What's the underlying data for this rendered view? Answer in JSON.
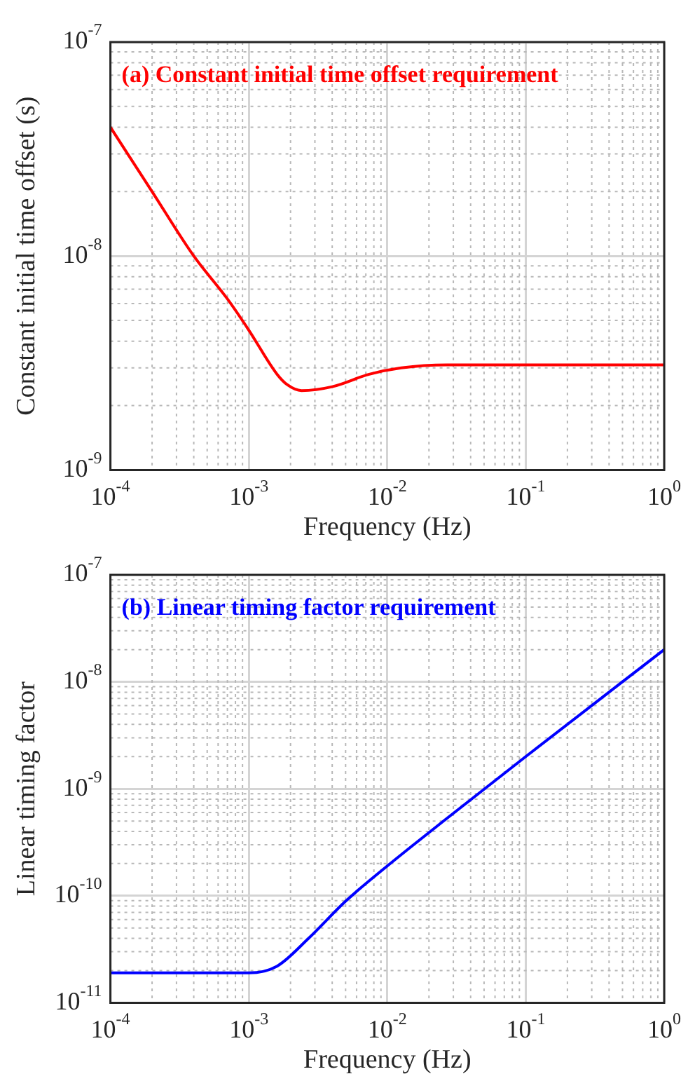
{
  "chart_data": [
    {
      "type": "line",
      "title": "(a) Constant initial time offset requirement",
      "xlabel": "Frequency (Hz)",
      "ylabel": "Constant initial time offset (s)",
      "series": [
        {
          "color": "#ff0000",
          "x": [
            0.0001,
            0.0002,
            0.0004,
            0.0007,
            0.001,
            0.0016,
            0.0019,
            0.0024,
            0.004,
            0.0074,
            0.0126,
            0.027,
            0.1,
            1
          ],
          "values": [
            4e-08,
            2e-08,
            1e-08,
            6.3e-09,
            4.5e-09,
            2.8e-09,
            2.5e-09,
            2.35e-09,
            2.45e-09,
            2.8e-09,
            3e-09,
            3.1e-09,
            3.1e-09,
            3.1e-09
          ]
        }
      ],
      "log": "xy",
      "xlim": [
        0.0001,
        1
      ],
      "ylim": [
        1e-09,
        1e-07
      ],
      "xticks": [
        {
          "value": 0.0001,
          "label": "10$^{-4}$"
        },
        {
          "value": 0.001,
          "label": "10$^{-3}$"
        },
        {
          "value": 0.01,
          "label": "10$^{-2}$"
        },
        {
          "value": 0.1,
          "label": "10$^{-1}$"
        },
        {
          "value": 1,
          "label": "10$^{0}$"
        }
      ],
      "yticks": [
        {
          "value": 1e-09,
          "label": "10$^{-9}$"
        },
        {
          "value": 1e-08,
          "label": "10$^{-8}$"
        },
        {
          "value": 1e-07,
          "label": "10$^{-7}$"
        }
      ],
      "grid": true
    },
    {
      "type": "line",
      "title": "(b) Linear timing factor requirement",
      "xlabel": "Frequency (Hz)",
      "ylabel": "Linear timing factor",
      "series": [
        {
          "color": "#0000ff",
          "x": [
            0.0001,
            0.0003,
            0.001,
            0.0016,
            0.0027,
            0.005,
            0.01,
            0.027,
            0.1,
            1
          ],
          "values": [
            1.9e-11,
            1.9e-11,
            1.9e-11,
            2.2e-11,
            4e-11,
            8.9e-11,
            1.9e-10,
            5.3e-10,
            2e-09,
            2e-08
          ]
        }
      ],
      "log": "xy",
      "xlim": [
        0.0001,
        1
      ],
      "ylim": [
        1e-11,
        1e-07
      ],
      "xticks": [
        {
          "value": 0.0001,
          "label": "10$^{-4}$"
        },
        {
          "value": 0.001,
          "label": "10$^{-3}$"
        },
        {
          "value": 0.01,
          "label": "10$^{-2}$"
        },
        {
          "value": 0.1,
          "label": "10$^{-1}$"
        },
        {
          "value": 1,
          "label": "10$^{0}$"
        }
      ],
      "yticks": [
        {
          "value": 1e-11,
          "label": "10$^{-11}$"
        },
        {
          "value": 1e-10,
          "label": "10$^{-10}$"
        },
        {
          "value": 1e-09,
          "label": "10$^{-9}$"
        },
        {
          "value": 1e-08,
          "label": "10$^{-8}$"
        },
        {
          "value": 1e-07,
          "label": "10$^{-7}$"
        }
      ],
      "grid": true
    }
  ]
}
